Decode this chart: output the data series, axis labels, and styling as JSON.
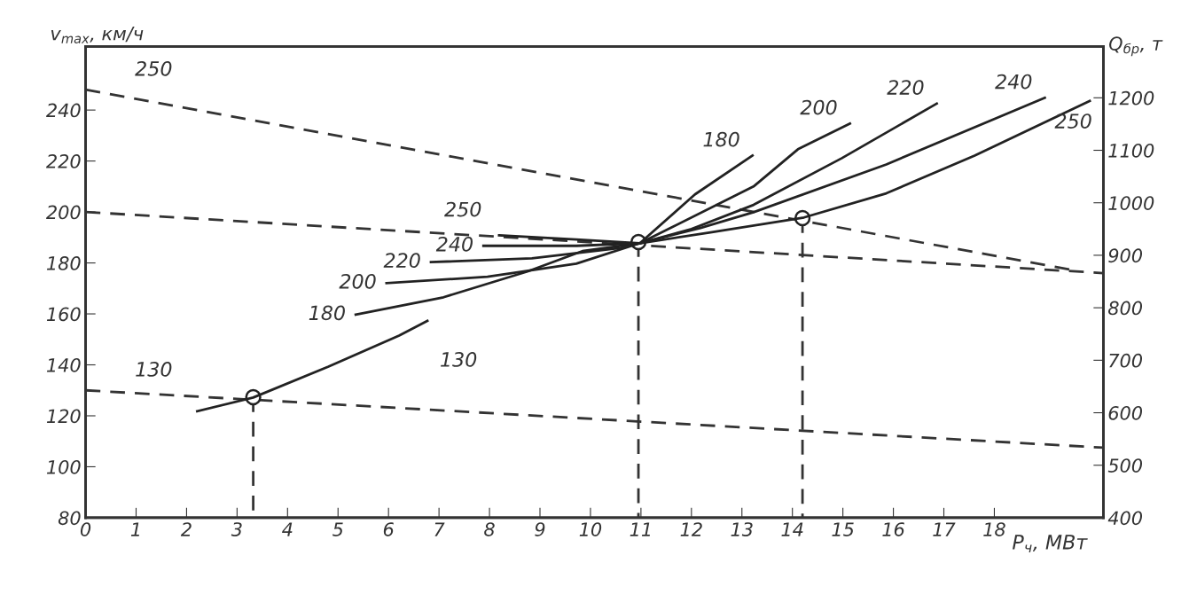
{
  "chart_data": {
    "type": "line",
    "xlabel": "P$_{ч}$, МВт",
    "ylabel": "v$_{max}$, км/ч",
    "y2label": "Q$_{бр}$, т",
    "xlim": [
      0,
      20.16
    ],
    "xticks": [
      0,
      1,
      2,
      3,
      4,
      5,
      6,
      7,
      8,
      9,
      10,
      11,
      12,
      13,
      14,
      15,
      16,
      17,
      18
    ],
    "ylim": [
      80,
      265
    ],
    "yticks": [
      80,
      100,
      120,
      140,
      160,
      180,
      200,
      220,
      240
    ],
    "y2lim": [
      400,
      1298
    ],
    "y2ticks": [
      400,
      500,
      600,
      700,
      800,
      900,
      1000,
      1100,
      1200
    ],
    "grid": false,
    "legend": false,
    "series": [
      {
        "name": "130",
        "axis": "y2",
        "color": "#222222",
        "line_style": "solid",
        "x": [
          2.21,
          3.32,
          4.81,
          6.21,
          6.77
        ],
        "values": [
          603,
          629,
          688,
          747,
          775
        ]
      },
      {
        "name": "180",
        "axis": "y2",
        "color": "#222222",
        "line_style": "solid",
        "x": [
          5.35,
          7.09,
          8.75,
          9.84,
          10.98,
          12.07,
          13.21
        ],
        "values": [
          787,
          820,
          869,
          908,
          923,
          1016,
          1090
        ]
      },
      {
        "name": "200",
        "axis": "y2",
        "color": "#222222",
        "line_style": "solid",
        "x": [
          5.96,
          7.96,
          9.72,
          10.98,
          13.23,
          14.11,
          15.14
        ],
        "values": [
          847,
          859,
          884,
          923,
          1031,
          1102,
          1151
        ]
      },
      {
        "name": "220",
        "axis": "y2",
        "color": "#222222",
        "line_style": "solid",
        "x": [
          6.84,
          8.84,
          10.6,
          10.98,
          12.0,
          13.23,
          14.98,
          16.86
        ],
        "values": [
          887,
          894,
          914,
          923,
          950,
          996,
          1085,
          1189
        ]
      },
      {
        "name": "240",
        "axis": "y2",
        "color": "#222222",
        "line_style": "solid",
        "x": [
          7.88,
          9.72,
          10.98,
          12.18,
          13.23,
          15.86,
          19.0
        ],
        "values": [
          918,
          918,
          923,
          952,
          982,
          1073,
          1200
        ]
      },
      {
        "name": "250",
        "axis": "y2",
        "color": "#222222",
        "line_style": "solid",
        "x": [
          8.19,
          9.72,
          10.98,
          12.35,
          14.23,
          15.86,
          17.61,
          19.89
        ],
        "values": [
          938,
          930,
          923,
          943,
          972,
          1018,
          1090,
          1194
        ]
      },
      {
        "name": "250",
        "axis": "y",
        "color": "#333333",
        "line_style": "dashed",
        "x": [
          0,
          19.6
        ],
        "values": [
          248,
          177
        ]
      },
      {
        "axis": "y",
        "color": "#333333",
        "line_style": "dashed",
        "x": [
          0,
          20.16
        ],
        "values": [
          200,
          176
        ]
      },
      {
        "name": "130",
        "axis": "y",
        "color": "#333333",
        "line_style": "dashed",
        "x": [
          0,
          20.16
        ],
        "values": [
          130,
          107.5
        ]
      },
      {
        "axis": "y",
        "color": "#333333",
        "line_style": "dashed",
        "x": [
          3.32,
          3.32
        ],
        "values": [
          127.3,
          80
        ]
      },
      {
        "axis": "y",
        "color": "#333333",
        "line_style": "dashed",
        "x": [
          10.95,
          10.95
        ],
        "values": [
          188.2,
          80
        ]
      },
      {
        "axis": "y",
        "color": "#333333",
        "line_style": "dashed",
        "x": [
          14.2,
          14.2
        ],
        "values": [
          197.6,
          80
        ]
      },
      {
        "type": "scatter",
        "axis": "y",
        "color": "#222222",
        "marker": "circle",
        "x": [
          3.32,
          10.95,
          14.2
        ],
        "values": [
          127.3,
          188.2,
          197.6
        ]
      }
    ]
  }
}
